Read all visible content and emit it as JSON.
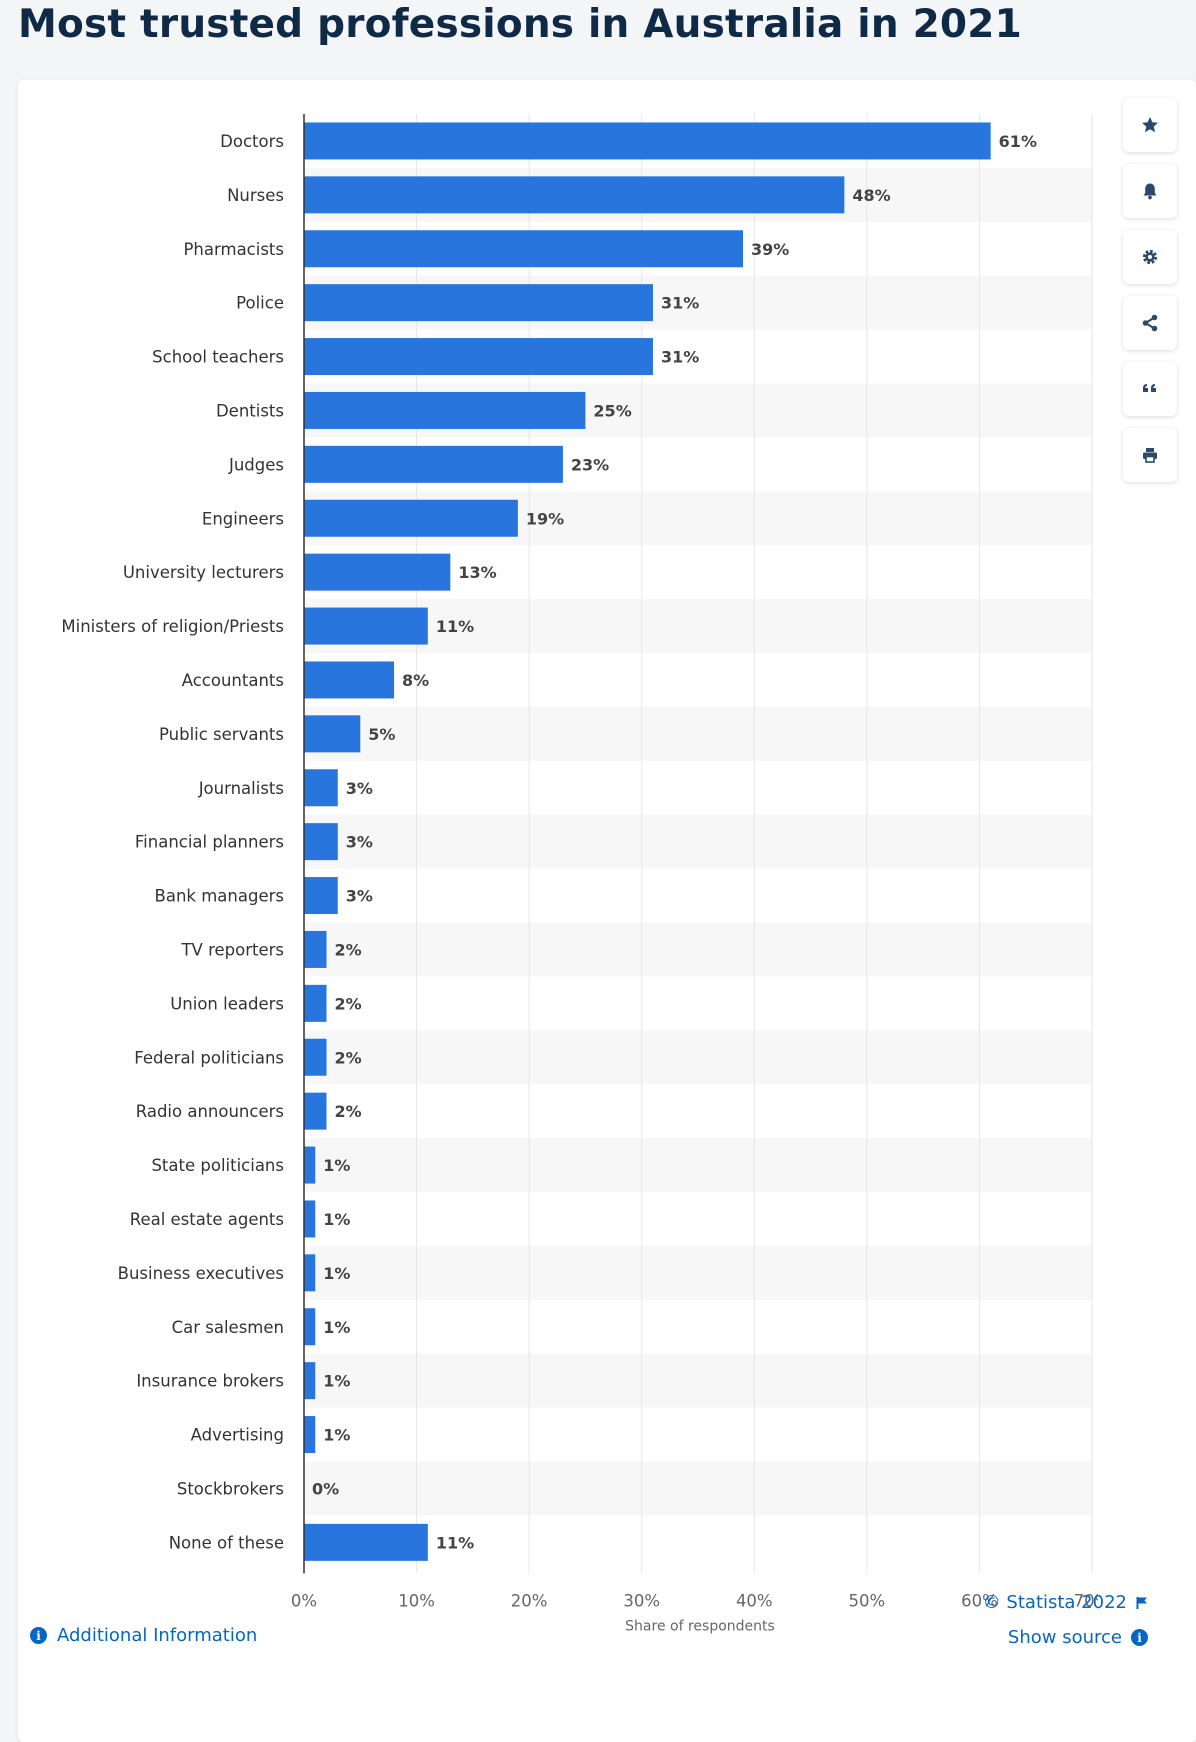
{
  "page": {
    "title": "Most trusted professions in Australia in 2021"
  },
  "toolbar": {
    "icons": [
      "star-icon",
      "bell-icon",
      "gear-icon",
      "share-icon",
      "quote-icon",
      "print-icon"
    ]
  },
  "footer": {
    "copyright": "© Statista 2022",
    "show_source": "Show source",
    "additional_info": "Additional Information"
  },
  "colors": {
    "bar": "#2876dd",
    "title": "#0f2a46",
    "link": "#0666c4",
    "icon": "#2b4a6b"
  },
  "chart_data": {
    "type": "bar",
    "orientation": "horizontal",
    "categories": [
      "Doctors",
      "Nurses",
      "Pharmacists",
      "Police",
      "School teachers",
      "Dentists",
      "Judges",
      "Engineers",
      "University lecturers",
      "Ministers of religion/Priests",
      "Accountants",
      "Public servants",
      "Journalists",
      "Financial planners",
      "Bank managers",
      "TV reporters",
      "Union leaders",
      "Federal politicians",
      "Radio announcers",
      "State politicians",
      "Real estate agents",
      "Business executives",
      "Car salesmen",
      "Insurance brokers",
      "Advertising",
      "Stockbrokers",
      "None of these"
    ],
    "values": [
      61,
      48,
      39,
      31,
      31,
      25,
      23,
      19,
      13,
      11,
      8,
      5,
      3,
      3,
      3,
      2,
      2,
      2,
      2,
      1,
      1,
      1,
      1,
      1,
      1,
      0,
      11
    ],
    "value_labels": [
      "61%",
      "48%",
      "39%",
      "31%",
      "31%",
      "25%",
      "23%",
      "19%",
      "13%",
      "11%",
      "8%",
      "5%",
      "3%",
      "3%",
      "3%",
      "2%",
      "2%",
      "2%",
      "2%",
      "1%",
      "1%",
      "1%",
      "1%",
      "1%",
      "1%",
      "0%",
      "11%"
    ],
    "xlabel": "Share of respondents",
    "ylabel": "",
    "xlim": [
      0,
      70
    ],
    "xticks": [
      0,
      10,
      20,
      30,
      40,
      50,
      60,
      70
    ],
    "xtick_labels": [
      "0%",
      "10%",
      "20%",
      "30%",
      "40%",
      "50%",
      "60%",
      "70%"
    ],
    "grid": true
  }
}
